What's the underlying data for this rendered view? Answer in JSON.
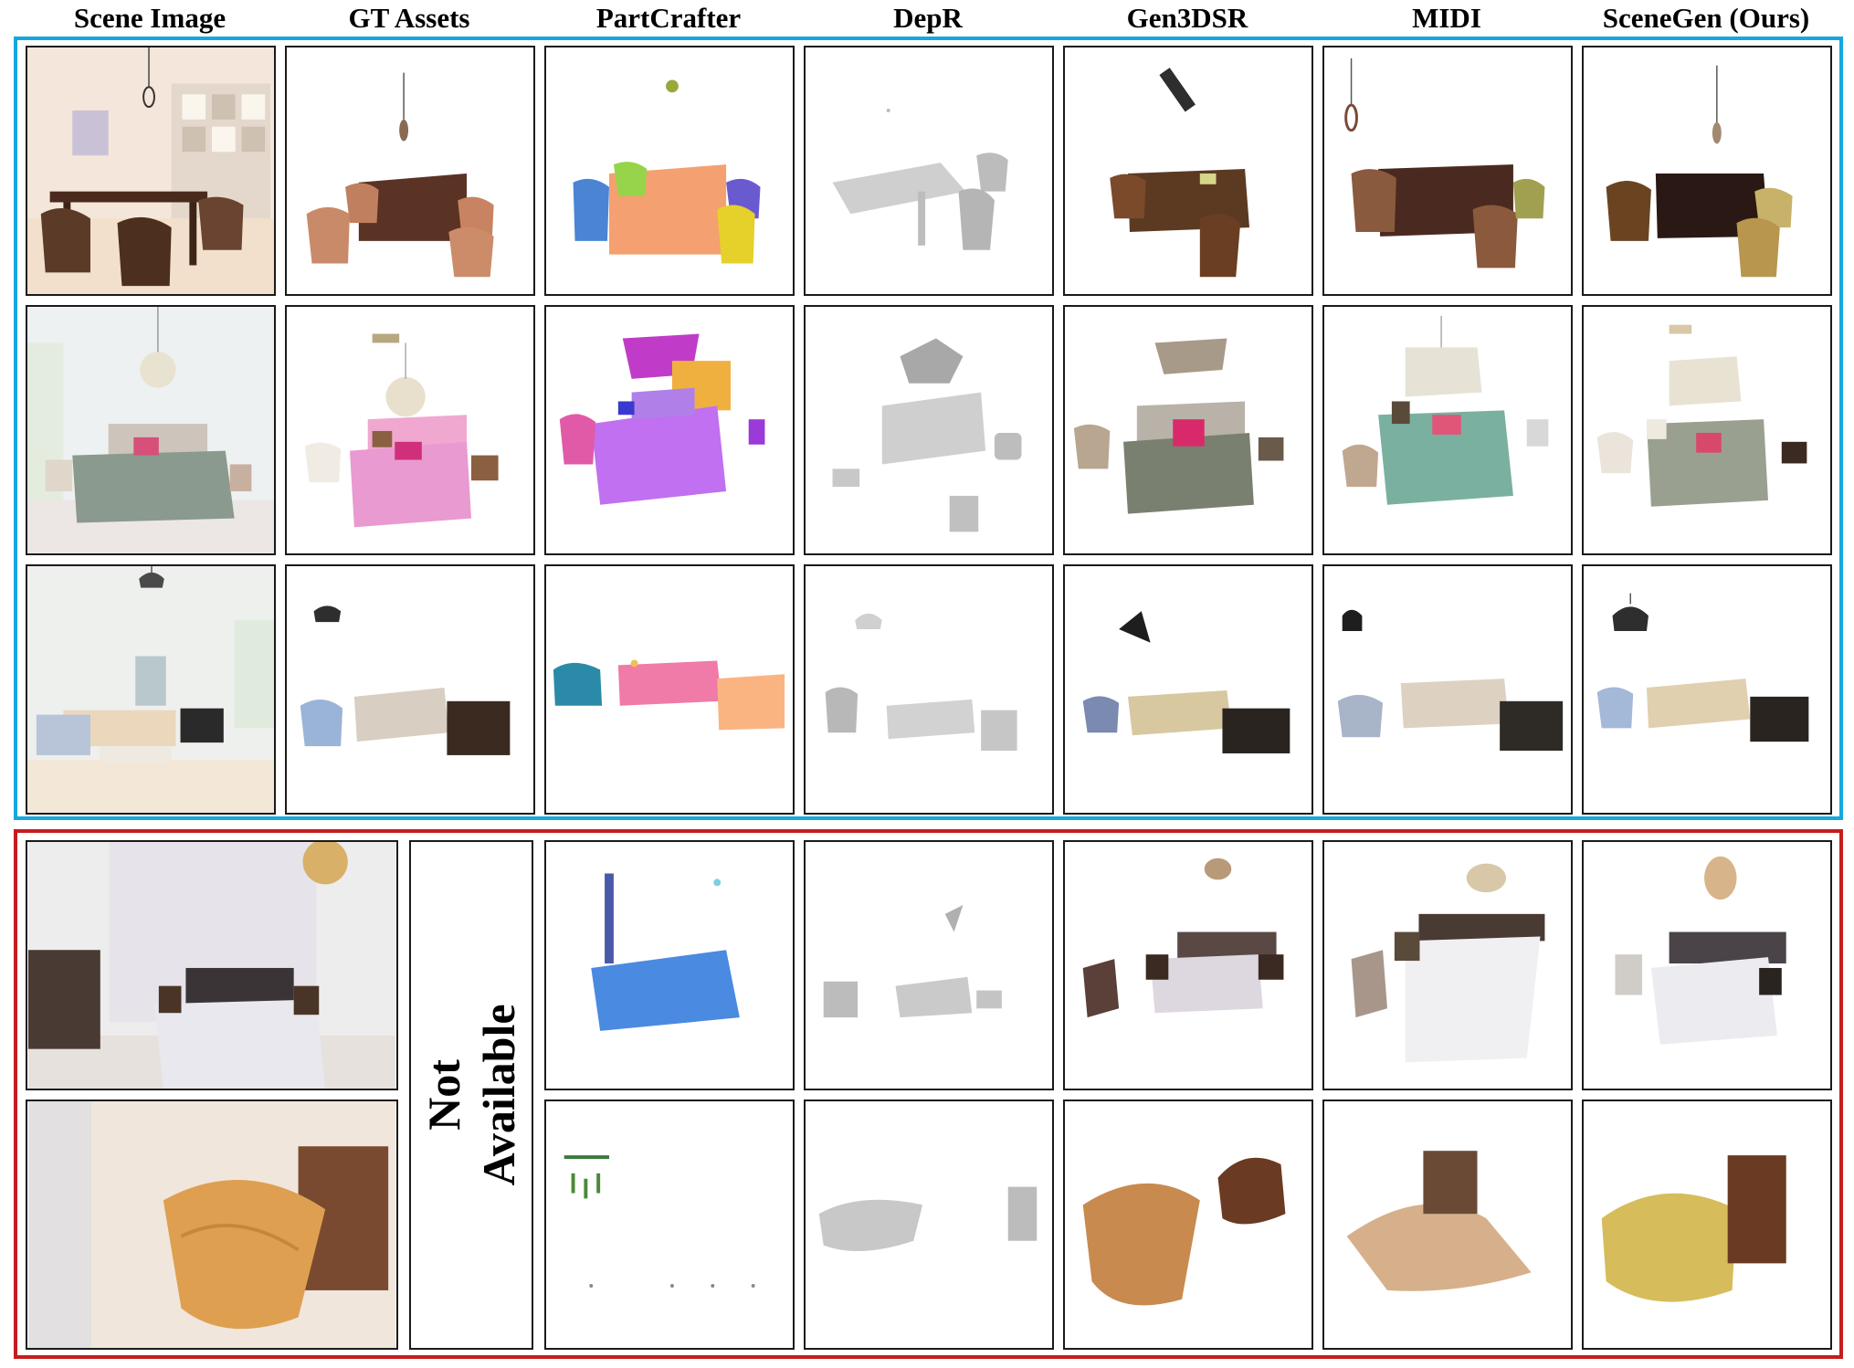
{
  "columns": [
    "Scene Image",
    "GT Assets",
    "PartCrafter",
    "DepR",
    "Gen3DSR",
    "MIDI",
    "SceneGen (Ours)"
  ],
  "not_available": [
    "Not",
    "Available"
  ],
  "colors": {
    "blue_group": "#14a8df",
    "red_group": "#c61d1d",
    "cell_border": "#1a1a1a"
  },
  "rows": [
    {
      "scene": "dining room with pendant lamp, table and four armchairs",
      "group": "blue"
    },
    {
      "scene": "bedroom with chandelier, bed, armchair and nightstands",
      "group": "blue"
    },
    {
      "scene": "living room with pendant lamp, sofa set and dresser",
      "group": "blue"
    },
    {
      "scene": "bedroom with pendant lamp and anchor-pattern bedding",
      "group": "red"
    },
    {
      "scene": "bedroom with yellow duvet and wooden cabinet",
      "group": "red"
    }
  ]
}
